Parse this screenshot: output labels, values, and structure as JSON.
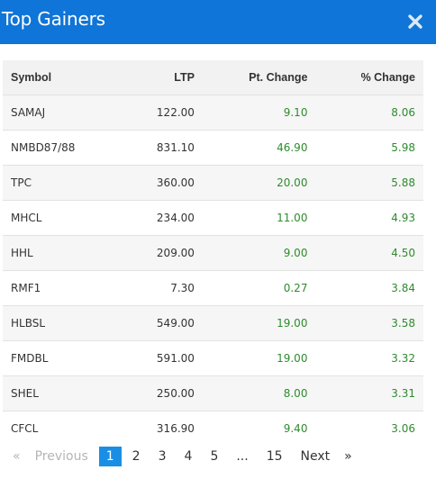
{
  "modal": {
    "title": "Top Gainers",
    "accent": "#0f75d8"
  },
  "table": {
    "headers": {
      "symbol": "Symbol",
      "ltp": "LTP",
      "pt_change": "Pt. Change",
      "pct_change": "% Change"
    },
    "rows": [
      {
        "symbol": "SAMAJ",
        "ltp": "122.00",
        "pt_change": "9.10",
        "pct_change": "8.06"
      },
      {
        "symbol": "NMBD87/88",
        "ltp": "831.10",
        "pt_change": "46.90",
        "pct_change": "5.98"
      },
      {
        "symbol": "TPC",
        "ltp": "360.00",
        "pt_change": "20.00",
        "pct_change": "5.88"
      },
      {
        "symbol": "MHCL",
        "ltp": "234.00",
        "pt_change": "11.00",
        "pct_change": "4.93"
      },
      {
        "symbol": "HHL",
        "ltp": "209.00",
        "pt_change": "9.00",
        "pct_change": "4.50"
      },
      {
        "symbol": "RMF1",
        "ltp": "7.30",
        "pt_change": "0.27",
        "pct_change": "3.84"
      },
      {
        "symbol": "HLBSL",
        "ltp": "549.00",
        "pt_change": "19.00",
        "pct_change": "3.58"
      },
      {
        "symbol": "FMDBL",
        "ltp": "591.00",
        "pt_change": "19.00",
        "pct_change": "3.32"
      },
      {
        "symbol": "SHEL",
        "ltp": "250.00",
        "pt_change": "8.00",
        "pct_change": "3.31"
      },
      {
        "symbol": "CFCL",
        "ltp": "316.90",
        "pt_change": "9.40",
        "pct_change": "3.06"
      }
    ]
  },
  "pagination": {
    "first_glyph": "«",
    "previous": "Previous",
    "pages": [
      "1",
      "2",
      "3",
      "4",
      "5"
    ],
    "ellipsis": "...",
    "last_page": "15",
    "next": "Next",
    "last_glyph": "»",
    "active": "1"
  },
  "colors": {
    "header_bg": "#0f75d8",
    "positive": "#2e8b2e",
    "active_page": "#1a8ee5"
  }
}
